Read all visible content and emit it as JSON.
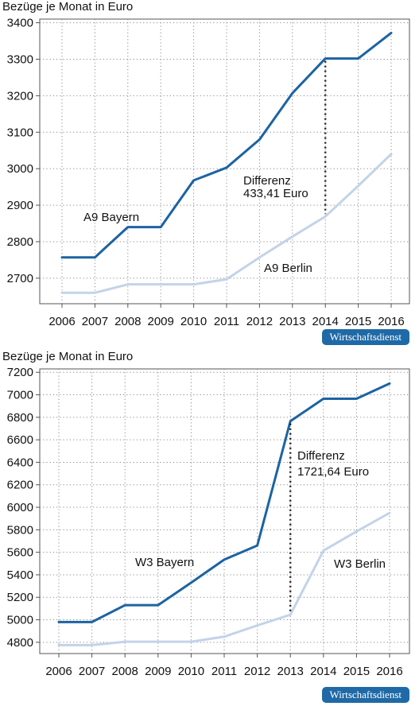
{
  "source_badge": "Wirtschaftsdienst",
  "colors": {
    "bayern": "#1c63a2",
    "berlin": "#c3d3e9",
    "grid": "#8a8a8a",
    "frame": "#555555"
  },
  "chart_data": [
    {
      "type": "line",
      "ylabel": "Bezüge je Monat in Euro",
      "x": [
        "2006",
        "2007",
        "2008",
        "2009",
        "2010",
        "2011",
        "2012",
        "2013",
        "2014",
        "2015",
        "2016"
      ],
      "ylim": [
        2630,
        3410
      ],
      "yticks": [
        2700,
        2800,
        2900,
        3000,
        3100,
        3200,
        3300,
        3400
      ],
      "grid": true,
      "series": [
        {
          "name": "A9  Bayern",
          "key": "bayern",
          "values": [
            2757,
            2757,
            2840,
            2840,
            2968,
            3003,
            3080,
            3207,
            3302,
            3302,
            3372
          ]
        },
        {
          "name": "A9 Berlin",
          "key": "berlin",
          "values": [
            2660,
            2660,
            2683,
            2683,
            2683,
            2697,
            2757,
            2814,
            2869,
            2953,
            3040
          ]
        }
      ],
      "annotation": {
        "line1": "Differenz",
        "line2": "433,41 Euro",
        "year": "2014"
      }
    },
    {
      "type": "line",
      "ylabel": "Bezüge je Monat in Euro",
      "x": [
        "2006",
        "2007",
        "2008",
        "2009",
        "2010",
        "2011",
        "2012",
        "2013",
        "2014",
        "2015",
        "2016"
      ],
      "ylim": [
        4700,
        7230
      ],
      "yticks": [
        4800,
        5000,
        5200,
        5400,
        5600,
        5800,
        6000,
        6200,
        6400,
        6600,
        6800,
        7000,
        7200
      ],
      "grid": true,
      "series": [
        {
          "name": "W3 Bayern",
          "key": "bayern",
          "values": [
            4980,
            4980,
            5130,
            5130,
            5330,
            5535,
            5660,
            6765,
            6965,
            6965,
            7100
          ]
        },
        {
          "name": "W3 Berlin",
          "key": "berlin",
          "values": [
            4775,
            4775,
            4805,
            4805,
            4805,
            4850,
            4950,
            5045,
            5615,
            5785,
            5950
          ]
        }
      ],
      "annotation": {
        "line1": "Differenz",
        "line2": "1721,64 Euro",
        "year": "2013"
      }
    }
  ]
}
